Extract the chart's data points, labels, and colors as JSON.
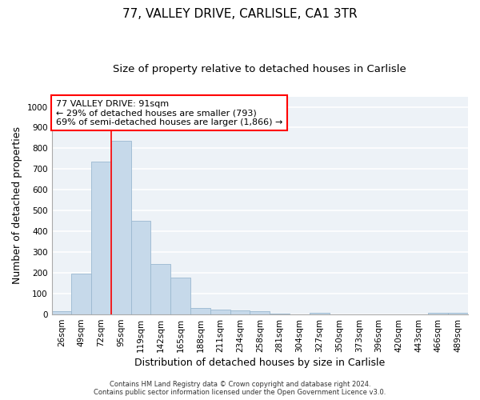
{
  "title1": "77, VALLEY DRIVE, CARLISLE, CA1 3TR",
  "title2": "Size of property relative to detached houses in Carlisle",
  "xlabel": "Distribution of detached houses by size in Carlisle",
  "ylabel": "Number of detached properties",
  "bar_color": "#c6d9ea",
  "bar_edge_color": "#9ab8d0",
  "categories": [
    "26sqm",
    "49sqm",
    "72sqm",
    "95sqm",
    "119sqm",
    "142sqm",
    "165sqm",
    "188sqm",
    "211sqm",
    "234sqm",
    "258sqm",
    "281sqm",
    "304sqm",
    "327sqm",
    "350sqm",
    "373sqm",
    "396sqm",
    "420sqm",
    "443sqm",
    "466sqm",
    "489sqm"
  ],
  "values": [
    15,
    195,
    735,
    838,
    450,
    242,
    178,
    33,
    22,
    18,
    14,
    6,
    0,
    8,
    0,
    0,
    0,
    0,
    0,
    8,
    8
  ],
  "ylim": [
    0,
    1050
  ],
  "yticks": [
    0,
    100,
    200,
    300,
    400,
    500,
    600,
    700,
    800,
    900,
    1000
  ],
  "red_line_bin_index": 3,
  "annotation_title": "77 VALLEY DRIVE: 91sqm",
  "annotation_line1": "← 29% of detached houses are smaller (793)",
  "annotation_line2": "69% of semi-detached houses are larger (1,866) →",
  "annotation_box_color": "white",
  "annotation_box_edge_color": "red",
  "footer1": "Contains HM Land Registry data © Crown copyright and database right 2024.",
  "footer2": "Contains public sector information licensed under the Open Government Licence v3.0.",
  "bg_color": "#edf2f7",
  "grid_color": "white",
  "title1_fontsize": 11,
  "title2_fontsize": 9.5,
  "tick_fontsize": 7.5,
  "ylabel_fontsize": 9,
  "xlabel_fontsize": 9,
  "annotation_fontsize": 8,
  "footer_fontsize": 6
}
